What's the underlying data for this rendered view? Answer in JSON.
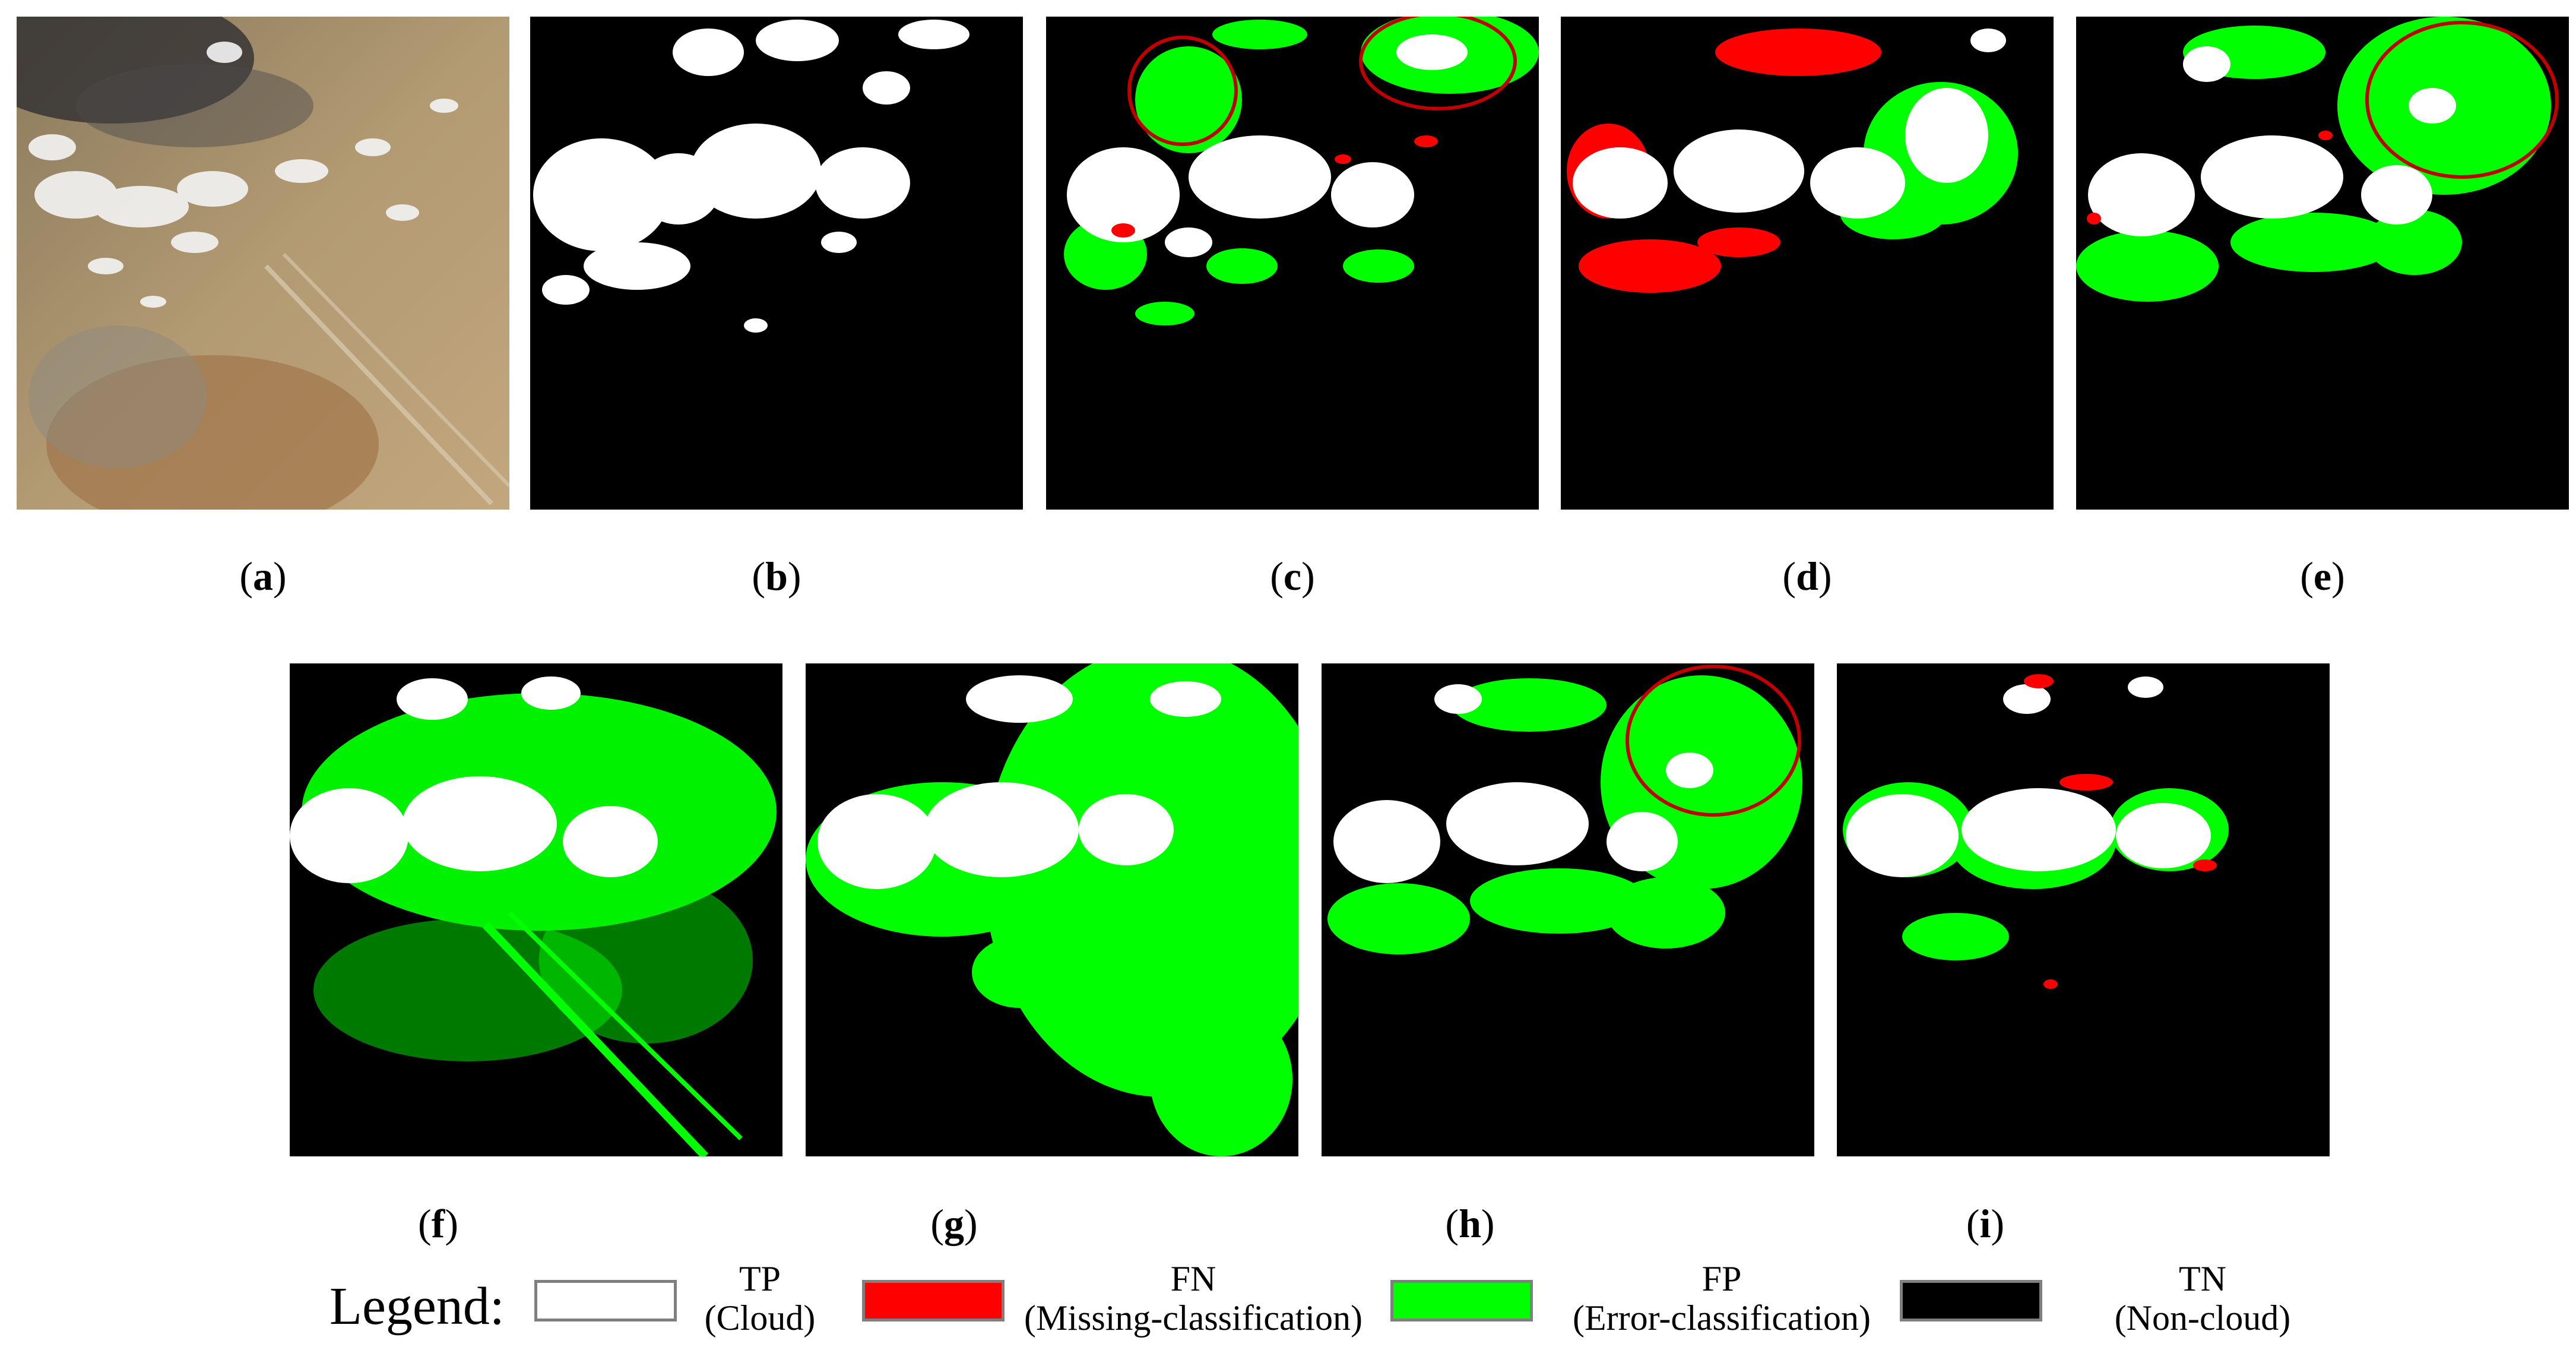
{
  "panels": [
    {
      "label": "a",
      "kind": "rgb"
    },
    {
      "label": "b",
      "kind": "truth"
    },
    {
      "label": "c",
      "kind": "result"
    },
    {
      "label": "d",
      "kind": "result"
    },
    {
      "label": "e",
      "kind": "result"
    },
    {
      "label": "f",
      "kind": "result"
    },
    {
      "label": "g",
      "kind": "result"
    },
    {
      "label": "h",
      "kind": "result"
    },
    {
      "label": "i",
      "kind": "result"
    }
  ],
  "legend": {
    "title": "Legend:",
    "items": [
      {
        "code": "TP",
        "desc": "(Cloud)",
        "color": "#ffffff"
      },
      {
        "code": "FN",
        "desc": "(Missing-classification)",
        "color": "#ff0000"
      },
      {
        "code": "FP",
        "desc": "(Error-classification)",
        "color": "#00ff00"
      },
      {
        "code": "TN",
        "desc": "(Non-cloud)",
        "color": "#000000"
      }
    ]
  },
  "colors": {
    "tp": "#ffffff",
    "fn": "#ff0000",
    "fp": "#00ff00",
    "tn": "#000000",
    "circle": "#c00000"
  }
}
